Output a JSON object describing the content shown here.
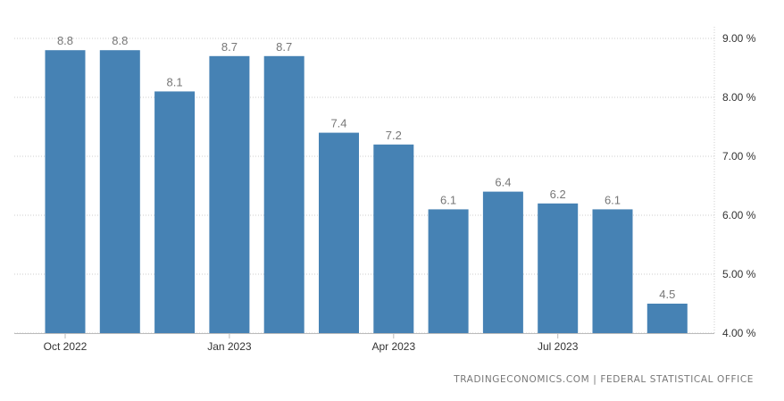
{
  "chart_data": {
    "type": "bar",
    "categories": [
      "Oct 2022",
      "Nov 2022",
      "Dec 2022",
      "Jan 2023",
      "Feb 2023",
      "Mar 2023",
      "Apr 2023",
      "May 2023",
      "Jun 2023",
      "Jul 2023",
      "Aug 2023",
      "Sep 2023"
    ],
    "values": [
      8.8,
      8.8,
      8.1,
      8.7,
      8.7,
      7.4,
      7.2,
      6.1,
      6.4,
      6.2,
      6.1,
      4.5
    ],
    "data_labels": [
      "8.8",
      "8.8",
      "8.1",
      "8.7",
      "8.7",
      "7.4",
      "7.2",
      "6.1",
      "6.4",
      "6.2",
      "6.1",
      "4.5"
    ],
    "x_tick_labels": [
      {
        "category": "Oct 2022",
        "label": "Oct 2022"
      },
      {
        "category": "Jan 2023",
        "label": "Jan 2023"
      },
      {
        "category": "Apr 2023",
        "label": "Apr 2023"
      },
      {
        "category": "Jul 2023",
        "label": "Jul 2023"
      }
    ],
    "y_ticks": [
      {
        "value": 9,
        "label": "9.00 %"
      },
      {
        "value": 8,
        "label": "8.00 %"
      },
      {
        "value": 7,
        "label": "7.00 %"
      },
      {
        "value": 6,
        "label": "6.00 %"
      },
      {
        "value": 5,
        "label": "5.00 %"
      },
      {
        "value": 4,
        "label": "4.00 %"
      }
    ],
    "ylim": [
      4,
      9.5
    ],
    "title": "",
    "xlabel": "",
    "ylabel": "",
    "y_axis_side": "right",
    "grid": "dotted",
    "colors": {
      "bar": "#4682b4",
      "grid": "#cccccc",
      "axis_text": "#333333",
      "label_text": "#777777"
    }
  },
  "source": "TRADINGECONOMICS.COM | FEDERAL STATISTICAL OFFICE"
}
